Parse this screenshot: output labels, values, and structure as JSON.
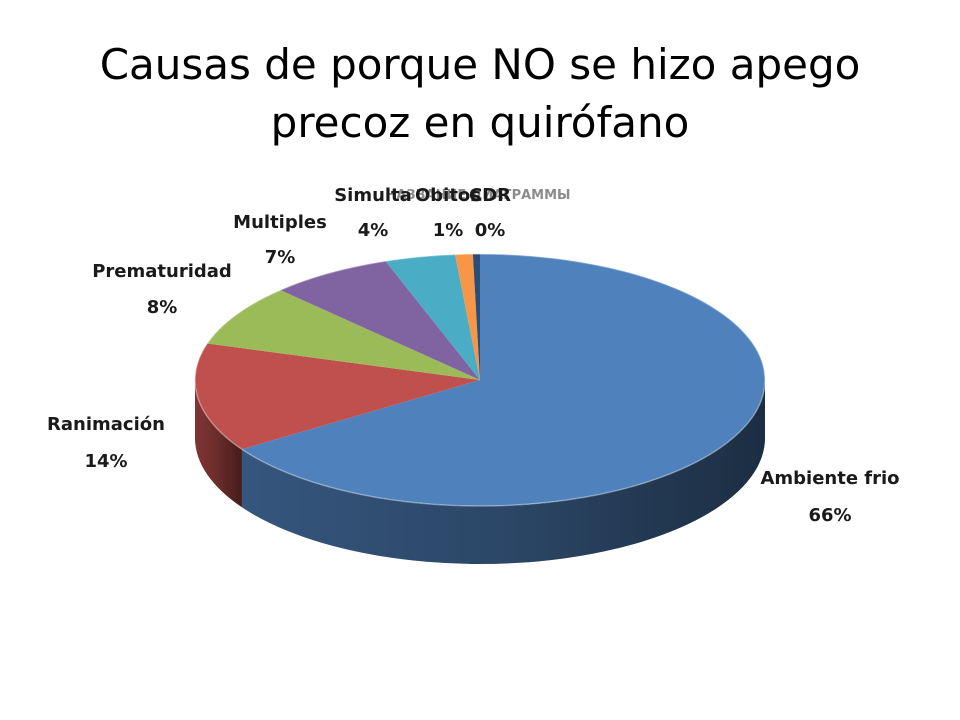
{
  "slide": {
    "title_line1": "Causas de porque NO se hizo apego",
    "title_line2": "precoz en quirófano"
  },
  "chart_data": {
    "type": "pie",
    "title": "НАЗВАНИЕ ДИАГРАММЫ",
    "categories": [
      "Ambiente frio",
      "Ranimación",
      "Prematuridad",
      "Multiples",
      "Simulta",
      "Obitos",
      "CDR"
    ],
    "values": [
      66,
      14,
      8,
      7,
      4,
      1,
      0.4
    ],
    "value_labels": [
      "66%",
      "14%",
      "8%",
      "7%",
      "4%",
      "1%",
      "0%"
    ],
    "colors": [
      "#4f81bd",
      "#c0504d",
      "#9bbb59",
      "#8064a2",
      "#4bacc6",
      "#f79646",
      "#2c4d75"
    ],
    "legend": "none"
  }
}
